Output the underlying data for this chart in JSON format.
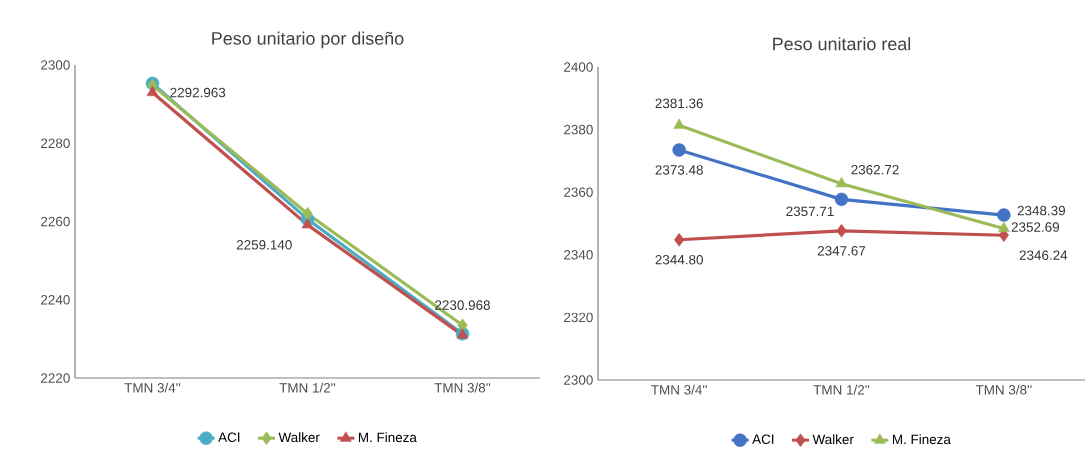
{
  "chart_data": [
    {
      "type": "line",
      "title": "Peso unitario por diseño",
      "categories": [
        "TMN 3/4''",
        "TMN 1/2''",
        "TMN 3/8''"
      ],
      "ylim": [
        2220,
        2300
      ],
      "yticks": [
        2220,
        2240,
        2260,
        2280,
        2300
      ],
      "grid": false,
      "legend": "bottom",
      "series": [
        {
          "name": "ACI",
          "color": "#4bacc6",
          "marker": "circle",
          "values": [
            2295.3,
            2260.6,
            2231.3
          ]
        },
        {
          "name": "Walker",
          "color": "#9bbb59",
          "marker": "diamond",
          "values": [
            2294.8,
            2262,
            2233.5
          ]
        },
        {
          "name": "M. Fineza",
          "color": "#c0504d",
          "marker": "triangle",
          "values": [
            2292.963,
            2259.14,
            2230.968
          ],
          "value_labels": [
            "2292.963",
            "2259.140",
            "2230.968"
          ]
        }
      ]
    },
    {
      "type": "line",
      "title": "Peso unitario real",
      "categories": [
        "TMN 3/4''",
        "TMN 1/2''",
        "TMN 3/8''"
      ],
      "ylim": [
        2300,
        2400
      ],
      "yticks": [
        2300,
        2320,
        2340,
        2360,
        2380,
        2400
      ],
      "grid": false,
      "legend": "bottom",
      "series": [
        {
          "name": "ACI",
          "color": "#4472c4",
          "marker": "circle",
          "values": [
            2373.48,
            2357.71,
            2352.69
          ],
          "value_labels": [
            "2373.48",
            "2357.71",
            "2352.69"
          ]
        },
        {
          "name": "Walker",
          "color": "#c0504d",
          "marker": "diamond",
          "values": [
            2344.8,
            2347.67,
            2346.24
          ],
          "value_labels": [
            "2344.80",
            "2347.67",
            "2346.24"
          ]
        },
        {
          "name": "M. Fineza",
          "color": "#9bbb59",
          "marker": "triangle",
          "values": [
            2381.36,
            2362.72,
            2348.39
          ],
          "value_labels": [
            "2381.36",
            "2362.72",
            "2348.39"
          ]
        }
      ]
    }
  ]
}
